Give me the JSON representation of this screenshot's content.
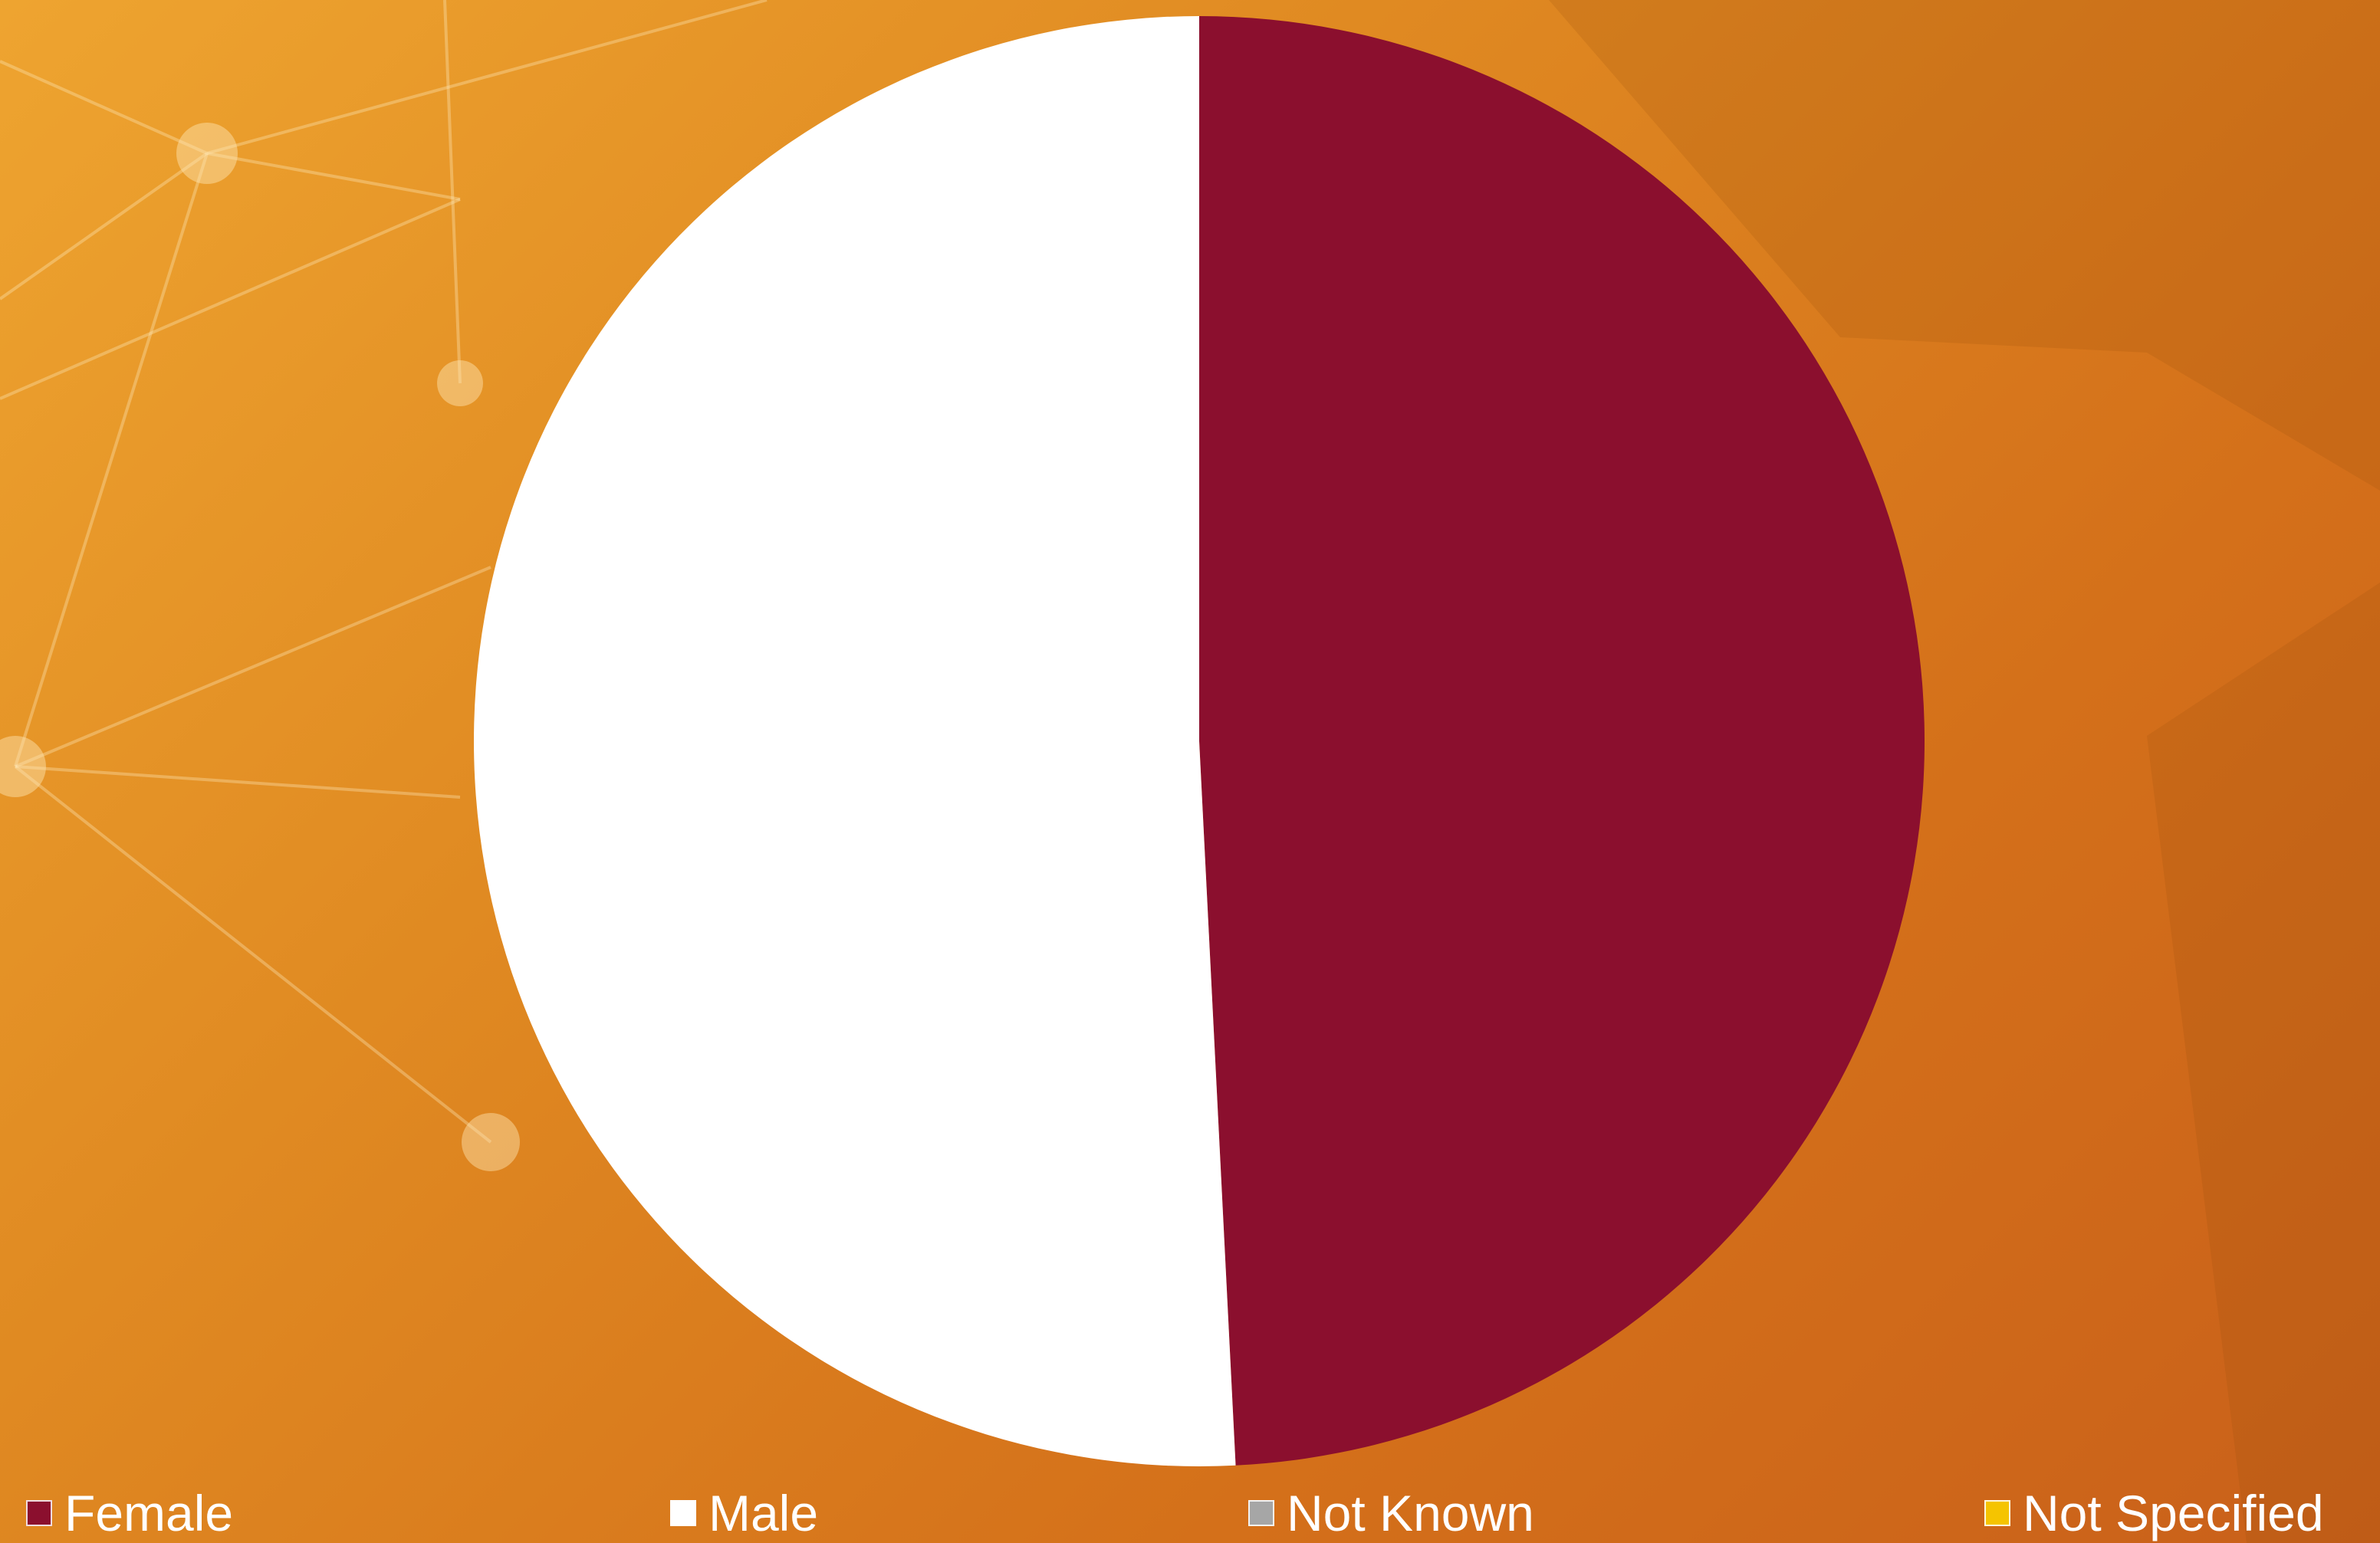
{
  "chart_data": {
    "type": "pie",
    "title": "",
    "categories": [
      "Female",
      "Male",
      "Not Known",
      "Not Specified"
    ],
    "values": [
      49.2,
      50.8,
      0,
      0
    ],
    "colors": [
      "#8b0f2e",
      "#ffffff",
      "#a6a6a6",
      "#f5c400"
    ],
    "start_angle": "12 o'clock",
    "direction": "clockwise",
    "legend": {
      "position": "bottom",
      "entries": [
        "Female",
        "Male",
        "Not Known",
        "Not Specified"
      ]
    }
  }
}
